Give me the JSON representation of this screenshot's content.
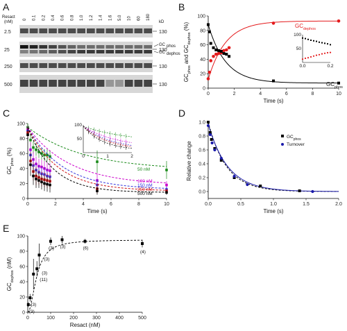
{
  "panels": {
    "A": {
      "label": "A",
      "resact_label": "Resact",
      "resact_unit": "(nM)",
      "kd_label": "kD",
      "lanes": [
        "0",
        "0.1",
        "0.2",
        "0.4",
        "0.6",
        "0.8",
        "1.0",
        "1.2",
        "1.4",
        "1.6",
        "5.0",
        "10",
        "60",
        "180"
      ],
      "row_labels": [
        "2.5",
        "25",
        "250",
        "500"
      ],
      "markers": [
        "130",
        "130",
        "130",
        "130"
      ],
      "band_labels": [
        "GC",
        "phos",
        "GC",
        "dephos"
      ]
    },
    "B": {
      "label": "B"
    },
    "C": {
      "label": "C"
    },
    "D": {
      "label": "D"
    },
    "E": {
      "label": "E"
    }
  },
  "chart_data": [
    {
      "id": "B",
      "type": "scatter",
      "xlabel": "Time (s)",
      "ylabel": [
        "GC",
        "phos",
        " and GC",
        "dephos",
        " (%)"
      ],
      "xlim": [
        0,
        10
      ],
      "ylim": [
        0,
        100
      ],
      "xticks": [
        "0",
        "2",
        "4",
        "6",
        "8",
        "10"
      ],
      "yticks": [
        "0",
        "20",
        "40",
        "60",
        "80",
        "100"
      ],
      "series": [
        {
          "name": "GCdephos",
          "label_main": "GC",
          "label_sub": "dephos",
          "color": "#e41a1c",
          "x": [
            0,
            0.1,
            0.2,
            0.4,
            0.6,
            0.8,
            1.0,
            1.2,
            1.4,
            1.6,
            5,
            10
          ],
          "y": [
            13,
            22,
            38,
            44,
            47,
            48,
            49,
            52,
            53,
            56,
            90,
            93
          ]
        },
        {
          "name": "GCphos",
          "label_main": "GC",
          "label_sub": "phos",
          "color": "#000000",
          "x": [
            0,
            0.1,
            0.2,
            0.4,
            0.6,
            0.8,
            1.0,
            1.2,
            1.4,
            1.6,
            5,
            10
          ],
          "y": [
            88,
            78,
            62,
            56,
            53,
            52,
            51,
            48,
            47,
            44,
            10,
            7
          ]
        }
      ],
      "inset": {
        "xlim": [
          0,
          0.2
        ],
        "ylim": [
          0,
          100
        ],
        "xticks": [
          "0.0",
          "0.2"
        ],
        "yticks": [
          "50",
          "100"
        ],
        "series": [
          {
            "color": "#000000",
            "x": [
              0,
              0.02,
              0.04,
              0.06,
              0.08,
              0.1,
              0.12,
              0.14,
              0.16,
              0.18,
              0.2
            ],
            "y": [
              88,
              86,
              83,
              80,
              78,
              76,
              73,
              71,
              69,
              67,
              64
            ]
          },
          {
            "color": "#e41a1c",
            "x": [
              0,
              0.02,
              0.04,
              0.06,
              0.08,
              0.1,
              0.12,
              0.14,
              0.16,
              0.18,
              0.2
            ],
            "y": [
              12,
              15,
              17,
              20,
              23,
              26,
              28,
              31,
              33,
              35,
              36
            ]
          }
        ]
      }
    },
    {
      "id": "C",
      "type": "scatter",
      "xlabel": "Time (s)",
      "ylabel": [
        "GC",
        "phos",
        " (%)"
      ],
      "xlim": [
        0,
        10
      ],
      "ylim": [
        0,
        100
      ],
      "xticks": [
        "0",
        "2",
        "4",
        "6",
        "8",
        "10"
      ],
      "yticks": [
        "0",
        "20",
        "40",
        "60",
        "80",
        "100"
      ],
      "series": [
        {
          "name": "50 nM",
          "color": "#1a8a1a",
          "x": [
            0,
            0.2,
            0.4,
            0.6,
            0.8,
            1.0,
            1.2,
            1.4,
            1.6,
            5,
            10
          ],
          "y": [
            95,
            78,
            68,
            65,
            62,
            60,
            58,
            58,
            56,
            49,
            38
          ],
          "err": [
            5,
            8,
            8,
            8,
            8,
            8,
            8,
            8,
            8,
            15,
            12
          ]
        },
        {
          "name": "100 nM",
          "color": "#cc00cc",
          "x": [
            0,
            0.2,
            0.4,
            0.6,
            0.8,
            1.0,
            1.2,
            1.4,
            1.6,
            5,
            10
          ],
          "y": [
            92,
            65,
            52,
            46,
            43,
            42,
            40,
            38,
            37,
            24,
            18
          ],
          "err": [
            5,
            10,
            10,
            10,
            10,
            10,
            10,
            10,
            10,
            10,
            5
          ]
        },
        {
          "name": "150 nM",
          "color": "#3333dd",
          "x": [
            0,
            0.2,
            0.4,
            0.6,
            0.8,
            1.0,
            1.2,
            1.4,
            1.6,
            5,
            10
          ],
          "y": [
            90,
            58,
            44,
            38,
            35,
            33,
            32,
            30,
            29,
            18,
            12
          ],
          "err": [
            5,
            10,
            10,
            10,
            10,
            10,
            10,
            10,
            10,
            8,
            4
          ]
        },
        {
          "name": "250 nM",
          "color": "#cc1111",
          "x": [
            0,
            0.2,
            0.4,
            0.6,
            0.8,
            1.0,
            1.2,
            1.4,
            1.6,
            5,
            10
          ],
          "y": [
            88,
            50,
            36,
            30,
            28,
            26,
            25,
            24,
            23,
            13,
            10
          ],
          "err": [
            6,
            12,
            12,
            12,
            10,
            10,
            10,
            10,
            10,
            6,
            3
          ]
        },
        {
          "name": "500 nM",
          "color": "#000000",
          "x": [
            0,
            0.2,
            0.4,
            0.6,
            0.8,
            1.0,
            1.2,
            1.4,
            1.6,
            5,
            10
          ],
          "y": [
            85,
            45,
            30,
            26,
            24,
            22,
            20,
            19,
            18,
            10,
            8
          ],
          "err": [
            8,
            15,
            12,
            12,
            10,
            10,
            10,
            10,
            10,
            5,
            3
          ]
        }
      ],
      "legend_labels": [
        "50 nM",
        "100 nM",
        "150 nM",
        "250 nM",
        "500 nM"
      ],
      "inset": {
        "xlim": [
          0,
          2
        ],
        "ylim": [
          0,
          100
        ],
        "xticks": [
          "0",
          "1",
          "2"
        ],
        "yticks": [
          "50",
          "100"
        ]
      }
    },
    {
      "id": "D",
      "type": "scatter",
      "xlabel": "Time (s)",
      "ylabel": "Relative change",
      "xlim": [
        0,
        2
      ],
      "ylim": [
        -0.1,
        1.0
      ],
      "xticks": [
        "0.0",
        "0.5",
        "1.0",
        "1.5",
        "2.0"
      ],
      "yticks": [
        "0.0",
        "0.2",
        "0.4",
        "0.6",
        "0.8",
        "1.0"
      ],
      "series": [
        {
          "name": "GCphos",
          "label_main": "GC",
          "label_sub": "phos",
          "color": "#000000",
          "x": [
            0,
            0.03,
            0.05,
            0.1,
            0.2,
            0.4,
            0.8,
            1.4
          ],
          "y": [
            1.0,
            0.85,
            0.75,
            0.62,
            0.45,
            0.2,
            0.08,
            0.01
          ]
        },
        {
          "name": "Turnover",
          "label_main": "Turnover",
          "label_sub": "",
          "color": "#1a1aaa",
          "x": [
            0,
            0.03,
            0.06,
            0.1,
            0.2,
            0.4,
            0.6,
            1.6
          ],
          "y": [
            0.95,
            0.82,
            0.7,
            0.6,
            0.48,
            0.22,
            0.1,
            0.0
          ]
        }
      ]
    },
    {
      "id": "E",
      "type": "scatter",
      "xlabel": "Resact (nM)",
      "ylabel": [
        "GC",
        "dephos",
        " (nM)"
      ],
      "xlim": [
        0,
        500
      ],
      "ylim": [
        0,
        100
      ],
      "xticks": [
        "0",
        "100",
        "200",
        "300",
        "400",
        "500"
      ],
      "yticks": [
        "0",
        "20",
        "40",
        "60",
        "80",
        "100"
      ],
      "series": [
        {
          "name": "GCdephos",
          "color": "#000000",
          "x": [
            2.5,
            10,
            25,
            40,
            50,
            100,
            150,
            250,
            500
          ],
          "y": [
            10,
            19,
            50,
            57,
            75,
            93,
            95,
            93,
            90
          ],
          "err": [
            3,
            5,
            20,
            10,
            15,
            5,
            5,
            3,
            5
          ],
          "n_labels": [
            "(3)",
            "(3)",
            "(11)",
            "(3)",
            "(3)",
            "(3)",
            "(3)",
            "(6)",
            "(4)"
          ]
        }
      ]
    }
  ]
}
